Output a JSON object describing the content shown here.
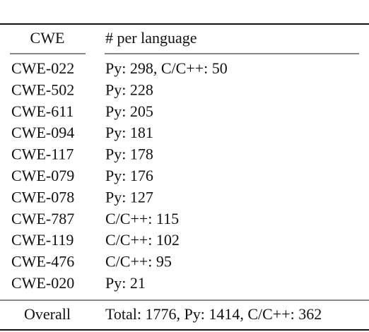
{
  "table": {
    "header": [
      "CWE",
      "# per language"
    ],
    "rows": [
      [
        "CWE-022",
        "Py: 298, C/C++: 50"
      ],
      [
        "CWE-502",
        "Py: 228"
      ],
      [
        "CWE-611",
        "Py: 205"
      ],
      [
        "CWE-094",
        "Py: 181"
      ],
      [
        "CWE-117",
        "Py: 178"
      ],
      [
        "CWE-079",
        "Py: 176"
      ],
      [
        "CWE-078",
        "Py: 127"
      ],
      [
        "CWE-787",
        "C/C++: 115"
      ],
      [
        "CWE-119",
        "C/C++: 102"
      ],
      [
        "CWE-476",
        "C/C++: 95"
      ],
      [
        "CWE-020",
        "Py: 21"
      ]
    ],
    "footer": [
      "Overall",
      "Total: 1776, Py: 1414, C/C++: 362"
    ]
  }
}
